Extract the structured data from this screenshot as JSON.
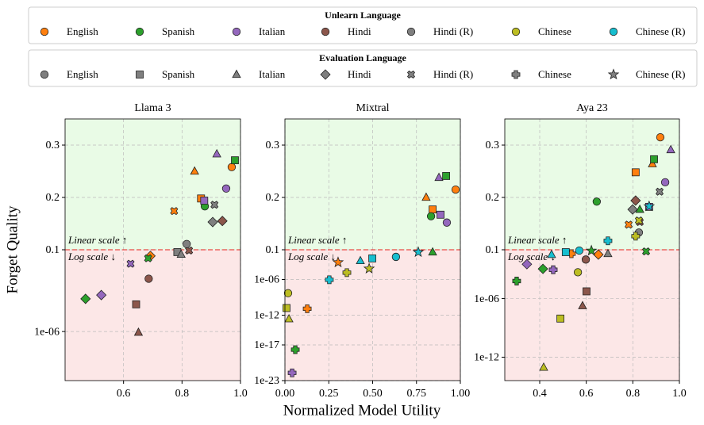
{
  "figure": {
    "xlabel": "Normalized Model Utility",
    "ylabel": "Forget Quality",
    "scale_notes": {
      "linear": "Linear scale ↑",
      "log": "Log scale ↓",
      "color": "#e8201c"
    },
    "threshold": 0.1,
    "regions": {
      "above": "#e9fbe6",
      "below": "#fce7e7"
    },
    "grid": true,
    "legend_unlearn": {
      "title": "Unlearn Language",
      "entries": [
        {
          "name": "English",
          "color": "#ff7f0e"
        },
        {
          "name": "Spanish",
          "color": "#2ca02c"
        },
        {
          "name": "Italian",
          "color": "#9467bd"
        },
        {
          "name": "Hindi",
          "color": "#8c564b"
        },
        {
          "name": "Hindi (R)",
          "color": "#7f7f7f"
        },
        {
          "name": "Chinese",
          "color": "#bcbd22"
        },
        {
          "name": "Chinese (R)",
          "color": "#17becf"
        }
      ]
    },
    "legend_eval": {
      "title": "Evaluation Language",
      "color": "#7f7f7f",
      "entries": [
        {
          "name": "English",
          "marker": "circle"
        },
        {
          "name": "Spanish",
          "marker": "square"
        },
        {
          "name": "Italian",
          "marker": "triangle"
        },
        {
          "name": "Hindi",
          "marker": "diamond"
        },
        {
          "name": "Hindi (R)",
          "marker": "x"
        },
        {
          "name": "Chinese",
          "marker": "plus"
        },
        {
          "name": "Chinese (R)",
          "marker": "star"
        }
      ]
    }
  },
  "chart_data": [
    {
      "type": "scatter",
      "title": "Llama 3",
      "yscale": "linear-above-log-below",
      "xlim": [
        0.4,
        1.0
      ],
      "xticks": [
        0.6,
        0.8,
        {
          "value": 1.0,
          "label": "1.0"
        }
      ],
      "ylim": [
        1e-09,
        0.35
      ],
      "yticks": [
        {
          "value": 1e-06,
          "label": "1e-06"
        },
        0.1,
        0.2,
        0.3
      ],
      "series": [
        {
          "unlearn": "English",
          "x": [
            0.97,
            0.843,
            0.865,
            0.773,
            0.692
          ],
          "values": [
            0.258,
            0.25,
            0.198,
            0.174,
            0.042
          ],
          "eval": [
            "English",
            "Italian",
            "Spanish",
            "Hindi (R)",
            "Hindi"
          ]
        },
        {
          "unlearn": "Spanish",
          "x": [
            0.981,
            0.878,
            0.47,
            0.684
          ],
          "values": [
            0.271,
            0.183,
            0.0001,
            0.03
          ],
          "eval": [
            "Spanish",
            "English",
            "Hindi",
            "Hindi (R)"
          ]
        },
        {
          "unlearn": "Italian",
          "x": [
            0.919,
            0.951,
            0.876,
            0.624,
            0.524
          ],
          "values": [
            0.283,
            0.217,
            0.194,
            0.014,
            0.00017
          ],
          "eval": [
            "Italian",
            "English",
            "Spanish",
            "Hindi (R)",
            "Hindi"
          ]
        },
        {
          "unlearn": "Hindi",
          "x": [
            0.938,
            0.824,
            0.686,
            0.643,
            0.651
          ],
          "values": [
            0.155,
            0.09,
            0.0017,
            4.6e-05,
            8.8e-07
          ],
          "eval": [
            "Hindi",
            "Hindi (R)",
            "English",
            "Spanish",
            "Italian"
          ]
        },
        {
          "unlearn": "Hindi (R)",
          "x": [
            0.816,
            0.784,
            0.797,
            0.905,
            0.911
          ],
          "values": [
            0.111,
            0.072,
            0.052,
            0.153,
            0.186
          ],
          "eval": [
            "English",
            "Spanish",
            "Italian",
            "Hindi",
            "Hindi (R)"
          ]
        }
      ]
    },
    {
      "type": "scatter",
      "title": "Mixtral",
      "yscale": "linear-above-log-below",
      "xlim": [
        0,
        1.0
      ],
      "xticks": [
        {
          "value": 0,
          "label": "0.00"
        },
        {
          "value": 0.25,
          "label": "0.25"
        },
        {
          "value": 0.5,
          "label": "0.50"
        },
        {
          "value": 0.75,
          "label": "0.75"
        },
        {
          "value": 1.0,
          "label": "1.00"
        }
      ],
      "ylim": [
        1e-23,
        0.35
      ],
      "yticks": [
        1e-23,
        1e-17,
        1e-12,
        {
          "value": 1e-06,
          "label": "1e-06"
        },
        0.1,
        0.2,
        0.3
      ],
      "series": [
        {
          "unlearn": "English",
          "x": [
            0.973,
            0.842,
            0.805,
            0.303,
            0.127
          ],
          "values": [
            0.215,
            0.177,
            0.2,
            0.00076,
            1.2e-11
          ],
          "eval": [
            "English",
            "Spanish",
            "Italian",
            "Chinese (R)",
            "Chinese"
          ]
        },
        {
          "unlearn": "Spanish",
          "x": [
            0.919,
            0.833,
            0.842,
            0.059
          ],
          "values": [
            0.241,
            0.164,
            0.04,
            1.6e-18
          ],
          "eval": [
            "Spanish",
            "English",
            "Italian",
            "Chinese"
          ]
        },
        {
          "unlearn": "Italian",
          "x": [
            0.878,
            0.887,
            0.923,
            0.041
          ],
          "values": [
            0.238,
            0.167,
            0.152,
            2e-22
          ],
          "eval": [
            "Italian",
            "Spanish",
            "English",
            "Chinese"
          ]
        },
        {
          "unlearn": "Chinese",
          "x": [
            0.353,
            0.48,
            0.018,
            0.009,
            0.023
          ],
          "values": [
            1.4e-05,
            6.6e-05,
            5e-09,
            1.6e-11,
            2.3e-13
          ],
          "eval": [
            "Chinese",
            "Chinese (R)",
            "English",
            "Spanish",
            "Italian"
          ]
        },
        {
          "unlearn": "Chinese (R)",
          "x": [
            0.633,
            0.498,
            0.43,
            0.76,
            0.253
          ],
          "values": [
            0.0064,
            0.0035,
            0.0014,
            0.04,
            9e-07
          ],
          "eval": [
            "English",
            "Spanish",
            "Italian",
            "Chinese (R)",
            "Chinese"
          ]
        }
      ]
    },
    {
      "type": "scatter",
      "title": "Aya 23",
      "yscale": "linear-above-log-below",
      "xlim": [
        0.25,
        1.0
      ],
      "xticks": [
        0.4,
        0.6,
        0.8,
        {
          "value": 1.0,
          "label": "1.0"
        }
      ],
      "ylim": [
        4e-15,
        0.35
      ],
      "yticks": [
        1e-12,
        {
          "value": 1e-06,
          "label": "1e-06"
        },
        0.1,
        0.2,
        0.3
      ],
      "series": [
        {
          "unlearn": "English",
          "x": [
            0.918,
            0.884,
            0.812,
            0.782,
            0.536,
            0.652
          ],
          "values": [
            0.315,
            0.264,
            0.248,
            0.148,
            0.039,
            0.032
          ],
          "eval": [
            "English",
            "Italian",
            "Spanish",
            "Hindi (R)",
            "Chinese",
            "Hindi"
          ]
        },
        {
          "unlearn": "Spanish",
          "x": [
            0.645,
            0.891,
            0.83,
            0.857,
            0.414,
            0.301,
            0.622
          ],
          "values": [
            0.192,
            0.273,
            0.177,
            0.068,
            0.0011,
            6.3e-05,
            0.08
          ],
          "eval": [
            "English",
            "Spanish",
            "Italian",
            "Hindi (R)",
            "Hindi",
            "Chinese",
            "Chinese (R)"
          ]
        },
        {
          "unlearn": "Italian",
          "x": [
            0.963,
            0.939,
            0.87,
            0.345,
            0.458
          ],
          "values": [
            0.291,
            0.229,
            0.182,
            0.0033,
            0.0009
          ],
          "eval": [
            "Italian",
            "English",
            "Spanish",
            "Hindi",
            "Chinese"
          ]
        },
        {
          "unlearn": "Hindi",
          "x": [
            0.812,
            0.83,
            0.598,
            0.601,
            0.584
          ],
          "values": [
            0.194,
            0.153,
            0.01,
            5.5e-06,
            1.8e-07
          ],
          "eval": [
            "Hindi",
            "Hindi (R)",
            "English",
            "Spanish",
            "Italian"
          ]
        },
        {
          "unlearn": "Hindi (R)",
          "x": [
            0.915,
            0.799,
            0.826,
            0.693
          ],
          "values": [
            0.211,
            0.177,
            0.133,
            0.039
          ],
          "eval": [
            "Hindi (R)",
            "Hindi",
            "English",
            "Italian"
          ]
        },
        {
          "unlearn": "Chinese",
          "x": [
            0.826,
            0.812,
            0.564,
            0.489,
            0.417
          ],
          "values": [
            0.156,
            0.126,
            0.0005,
            9e-09,
            9e-14
          ],
          "eval": [
            "Hindi (R)",
            "Chinese",
            "English",
            "Spanish",
            "Italian"
          ]
        },
        {
          "unlearn": "Chinese (R)",
          "x": [
            0.693,
            0.57,
            0.512,
            0.451,
            0.87
          ],
          "values": [
            0.117,
            0.083,
            0.057,
            0.032,
            0.183
          ],
          "eval": [
            "Chinese",
            "English",
            "Spanish",
            "Italian",
            "Chinese (R)"
          ]
        }
      ]
    }
  ]
}
